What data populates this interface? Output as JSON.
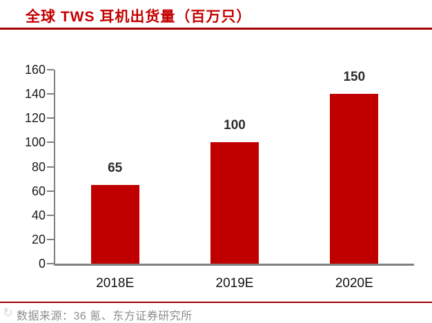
{
  "header": {
    "title": "全球 TWS 耳机出货量（百万只）"
  },
  "chart_data": {
    "type": "bar",
    "title": "全球 TWS 耳机出货量（百万只）",
    "categories": [
      "2018E",
      "2019E",
      "2020E"
    ],
    "values": [
      65,
      100,
      150
    ],
    "data_labels": [
      "65",
      "100",
      "150"
    ],
    "xlabel": "",
    "ylabel": "",
    "ylim": [
      0,
      160
    ],
    "y_ticks": [
      0,
      20,
      40,
      60,
      80,
      100,
      120,
      140,
      160
    ],
    "grid": false,
    "legend": false,
    "bar_color": "#C00000"
  },
  "footer": {
    "source_label": "数据来源：36 氪、东方证券研究所",
    "watermark_icon": "circular-watermark"
  },
  "colors": {
    "title_red": "#C40000",
    "rule_red": "#A00000",
    "bar_red": "#C00000",
    "axis_gray": "#7F7F7F",
    "tick_label": "#1a1a1a",
    "value_label": "#2b2b2b",
    "source_gray": "#8c8c8c"
  }
}
